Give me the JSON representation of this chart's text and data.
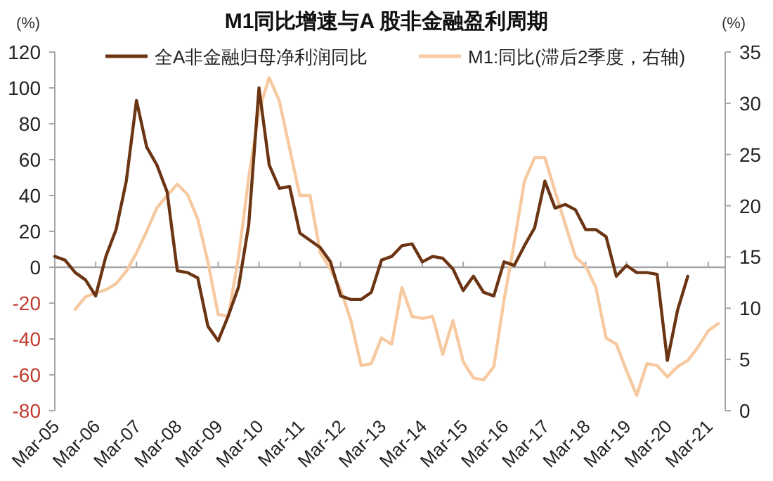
{
  "chart_data": {
    "type": "line",
    "title": "M1同比增速与A 股非金融盈利周期",
    "ylabel": "(%)",
    "y2label": "(%)",
    "series": [
      {
        "name": "全A非金融归母净利润同比",
        "color": "#6b3514",
        "x": [
          "2005-03",
          "2005-06",
          "2005-09",
          "2005-12",
          "2006-03",
          "2006-06",
          "2006-09",
          "2006-12",
          "2007-03",
          "2007-06",
          "2007-09",
          "2007-12",
          "2008-03",
          "2008-06",
          "2008-09",
          "2008-12",
          "2009-03",
          "2009-06",
          "2009-09",
          "2009-12",
          "2010-03",
          "2010-06",
          "2010-09",
          "2010-12",
          "2011-03",
          "2011-06",
          "2011-09",
          "2011-12",
          "2012-03",
          "2012-06",
          "2012-09",
          "2012-12",
          "2013-03",
          "2013-06",
          "2013-09",
          "2013-12",
          "2014-03",
          "2014-06",
          "2014-09",
          "2014-12",
          "2015-03",
          "2015-06",
          "2015-09",
          "2015-12",
          "2016-03",
          "2016-06",
          "2016-09",
          "2016-12",
          "2017-03",
          "2017-06",
          "2017-09",
          "2017-12",
          "2018-03",
          "2018-06",
          "2018-09",
          "2018-12",
          "2019-03",
          "2019-06",
          "2019-09",
          "2019-12",
          "2020-03",
          "2020-06",
          "2020-09"
        ],
        "values": [
          6,
          4,
          -3,
          -7,
          -16,
          6,
          21,
          48,
          93,
          67,
          57,
          42,
          -2,
          -3,
          -6,
          -33,
          -41,
          -27,
          -11,
          24,
          100,
          57,
          44,
          45,
          19,
          15,
          11,
          3,
          -16,
          -18,
          -18,
          -14,
          4,
          6,
          12,
          13,
          3,
          6,
          5,
          -1,
          -13,
          -5,
          -14,
          -16,
          3,
          1,
          12,
          22,
          48,
          33,
          35,
          32,
          21,
          21,
          17,
          -5,
          1,
          -3,
          -3,
          -4,
          -52,
          -24,
          -5
        ]
      },
      {
        "name": "M1:同比(滞后2季度，右轴)",
        "color": "#f7c9a0",
        "axis": "y2",
        "x": [
          "2005-09",
          "2005-12",
          "2006-03",
          "2006-06",
          "2006-09",
          "2006-12",
          "2007-03",
          "2007-06",
          "2007-09",
          "2007-12",
          "2008-03",
          "2008-06",
          "2008-09",
          "2008-12",
          "2009-03",
          "2009-06",
          "2009-09",
          "2009-12",
          "2010-03",
          "2010-06",
          "2010-09",
          "2010-12",
          "2011-03",
          "2011-06",
          "2011-09",
          "2011-12",
          "2012-03",
          "2012-06",
          "2012-09",
          "2012-12",
          "2013-03",
          "2013-06",
          "2013-09",
          "2013-12",
          "2014-03",
          "2014-06",
          "2014-09",
          "2014-12",
          "2015-03",
          "2015-06",
          "2015-09",
          "2015-12",
          "2016-03",
          "2016-06",
          "2016-09",
          "2016-12",
          "2017-03",
          "2017-06",
          "2017-09",
          "2017-12",
          "2018-03",
          "2018-06",
          "2018-09",
          "2018-12",
          "2019-03",
          "2019-06",
          "2019-09",
          "2019-12",
          "2020-03",
          "2020-06",
          "2020-09",
          "2020-12",
          "2021-03",
          "2021-06"
        ],
        "values": [
          9.9,
          11.1,
          11.5,
          11.8,
          12.4,
          13.6,
          15.4,
          17.5,
          19.8,
          21.0,
          22.1,
          21.1,
          18.7,
          14.5,
          9.4,
          9.2,
          15.0,
          22.8,
          29.3,
          32.5,
          30.2,
          25.6,
          21.0,
          21.0,
          15.4,
          13.8,
          11.8,
          8.8,
          4.4,
          4.6,
          7.1,
          6.5,
          12.0,
          9.2,
          9.0,
          9.2,
          5.5,
          8.8,
          4.8,
          3.2,
          3.0,
          4.3,
          10.8,
          16.4,
          22.4,
          24.7,
          24.7,
          21.4,
          18.2,
          15.0,
          14.1,
          12.0,
          7.1,
          6.5,
          3.9,
          1.5,
          4.6,
          4.4,
          3.3,
          4.3,
          4.9,
          6.2,
          7.8,
          8.5
        ]
      }
    ],
    "xlim": [
      "2005-03",
      "2021-08"
    ],
    "xticks": [
      {
        "value": "2005-03",
        "label": "Mar-05"
      },
      {
        "value": "2006-03",
        "label": "Mar-06"
      },
      {
        "value": "2007-03",
        "label": "Mar-07"
      },
      {
        "value": "2008-03",
        "label": "Mar-08"
      },
      {
        "value": "2009-03",
        "label": "Mar-09"
      },
      {
        "value": "2010-03",
        "label": "Mar-10"
      },
      {
        "value": "2011-03",
        "label": "Mar-11"
      },
      {
        "value": "2012-03",
        "label": "Mar-12"
      },
      {
        "value": "2013-03",
        "label": "Mar-13"
      },
      {
        "value": "2014-03",
        "label": "Mar-14"
      },
      {
        "value": "2015-03",
        "label": "Mar-15"
      },
      {
        "value": "2016-03",
        "label": "Mar-16"
      },
      {
        "value": "2017-03",
        "label": "Mar-17"
      },
      {
        "value": "2018-03",
        "label": "Mar-18"
      },
      {
        "value": "2019-03",
        "label": "Mar-19"
      },
      {
        "value": "2020-03",
        "label": "Mar-20"
      },
      {
        "value": "2021-03",
        "label": "Mar-21"
      }
    ],
    "ylim": [
      -80,
      120
    ],
    "yticks": [
      -80,
      -60,
      -40,
      -20,
      0,
      20,
      40,
      60,
      80,
      100,
      120
    ],
    "y2lim": [
      0,
      35
    ],
    "y2ticks": [
      0,
      5,
      10,
      15,
      20,
      25,
      30,
      35
    ],
    "ref_lines": [
      {
        "axis": "y",
        "value": 0,
        "color": "#a6a6a6"
      }
    ],
    "legend": "top",
    "grid": false,
    "marker": "none",
    "line_style": "solid"
  }
}
